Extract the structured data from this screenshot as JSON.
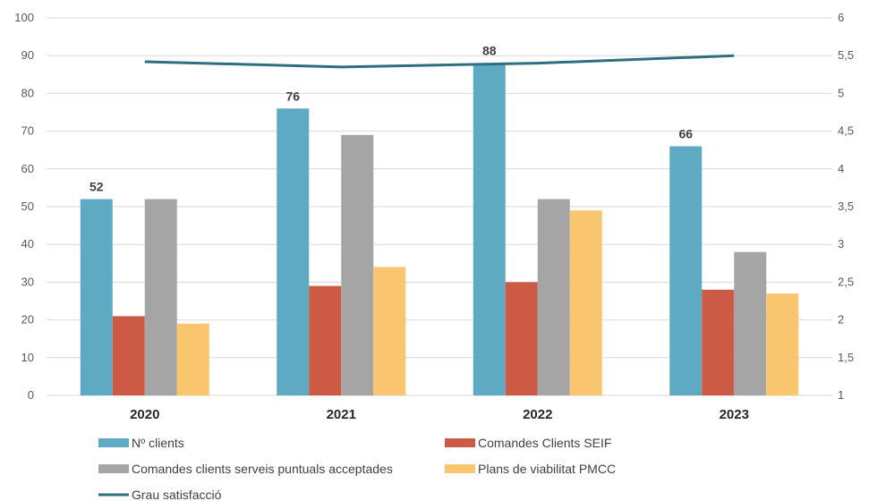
{
  "chart_data": {
    "type": "bar",
    "categories": [
      "2020",
      "2021",
      "2022",
      "2023"
    ],
    "series": [
      {
        "name": "Nº clients",
        "values": [
          52,
          76,
          88,
          66
        ],
        "color": "#5FAAC3",
        "data_labels": true
      },
      {
        "name": "Comandes Clients SEIF",
        "values": [
          21,
          29,
          30,
          28
        ],
        "color": "#CC5A45"
      },
      {
        "name": "Comandes clients serveis puntuals acceptades",
        "values": [
          52,
          69,
          52,
          38
        ],
        "color": "#A5A5A5"
      },
      {
        "name": "Plans de viabilitat PMCC",
        "values": [
          19,
          34,
          49,
          27
        ],
        "color": "#F9C56E"
      }
    ],
    "line_series": {
      "name": "Grau satisfacció",
      "values": [
        5.42,
        5.35,
        5.4,
        5.5
      ],
      "color": "#2E6E80",
      "axis": "right"
    },
    "y_left": {
      "min": 0,
      "max": 100,
      "ticks": [
        "0",
        "10",
        "20",
        "30",
        "40",
        "50",
        "60",
        "70",
        "80",
        "90",
        "100"
      ]
    },
    "y_right": {
      "min": 1,
      "max": 6,
      "ticks": [
        "1",
        "1,5",
        "2",
        "2,5",
        "3",
        "3,5",
        "4",
        "4,5",
        "5",
        "5,5",
        "6"
      ]
    },
    "grid": true,
    "legend_position": "bottom"
  }
}
